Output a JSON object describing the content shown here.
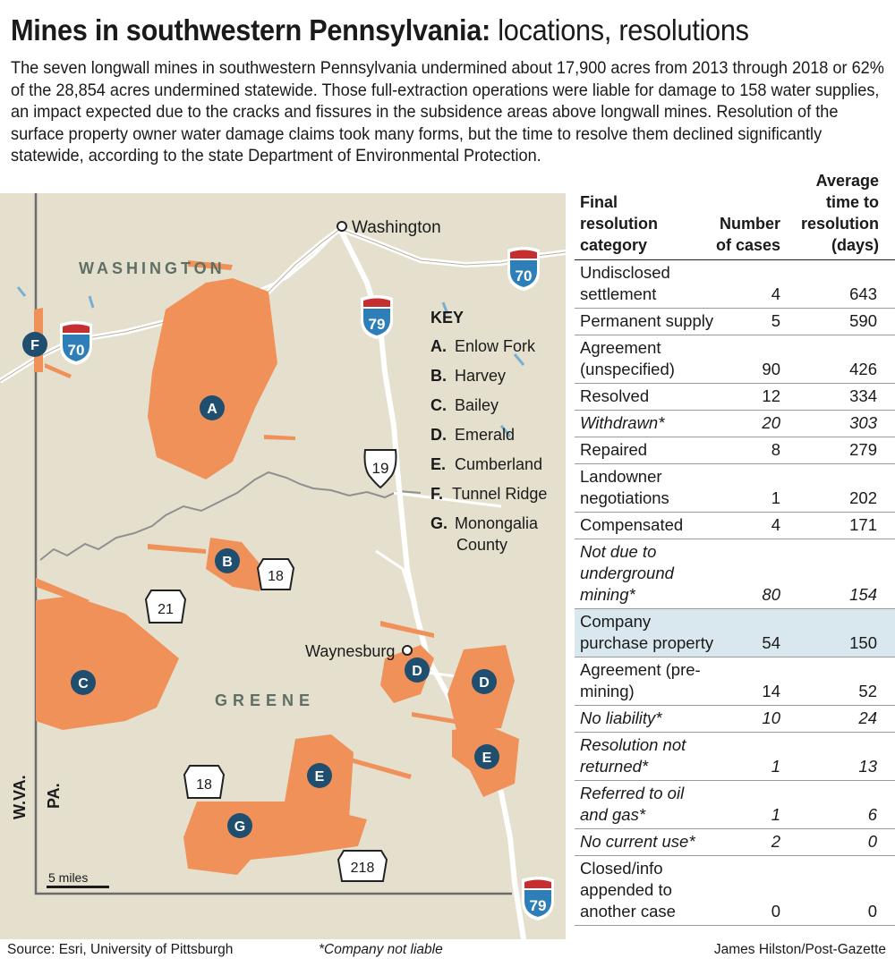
{
  "header": {
    "title_bold": "Mines in southwestern Pennsylvania:",
    "title_light": "locations, resolutions",
    "intro": "The seven longwall mines in southwestern Pennsylvania undermined about 17,900 acres from 2013 through 2018 or 62% of the 28,854 acres undermined statewide. Those full-extraction operations were liable for damage to 158 water supplies, an impact expected due to the cracks and fissures in the subsidence areas above longwall mines. Resolution of the surface property owner water damage claims took many forms, but the time to resolve them declined significantly statewide, according to the state Department of Environmental Protection."
  },
  "map": {
    "counties": [
      "WASHINGTON",
      "GREENE"
    ],
    "towns": [
      "Washington",
      "Waynesburg"
    ],
    "state_labels": [
      "W.VA.",
      "PA."
    ],
    "scale_label": "5 miles",
    "highways": {
      "i70_a": "70",
      "i70_b": "70",
      "i79_a": "79",
      "i79_b": "79",
      "us19": "19",
      "pa18_a": "18",
      "pa18_b": "18",
      "pa21": "21",
      "pa218": "218"
    },
    "markers": {
      "A": "A",
      "B": "B",
      "C": "C",
      "D1": "D",
      "D2": "D",
      "E1": "E",
      "E2": "E",
      "F": "F",
      "G": "G"
    },
    "key_title": "KEY",
    "key": [
      {
        "letter": "A.",
        "name": "Enlow Fork"
      },
      {
        "letter": "B.",
        "name": "Harvey"
      },
      {
        "letter": "C.",
        "name": "Bailey"
      },
      {
        "letter": "D.",
        "name": "Emerald"
      },
      {
        "letter": "E.",
        "name": "Cumberland"
      },
      {
        "letter": "F.",
        "name": "Tunnel Ridge"
      },
      {
        "letter": "G.",
        "name": "Monongalia",
        "name2": "County"
      }
    ],
    "colors": {
      "land": "#e5e0ce",
      "mine": "#f0915a",
      "marker": "#1f4e6e",
      "road": "#ffffff",
      "border": "#6b6b6b"
    }
  },
  "table": {
    "headers": {
      "category": "Final resolution category",
      "cases": "Number of cases",
      "time": "Average time to resolution (days)"
    },
    "rows": [
      {
        "category": "Undisclosed settlement",
        "cases": "4",
        "days": "643",
        "italic": false,
        "highlight": false
      },
      {
        "category": "Permanent supply",
        "cases": "5",
        "days": "590",
        "italic": false,
        "highlight": false
      },
      {
        "category": "Agreement (unspecified)",
        "cases": "90",
        "days": "426",
        "italic": false,
        "highlight": false
      },
      {
        "category": "Resolved",
        "cases": "12",
        "days": "334",
        "italic": false,
        "highlight": false
      },
      {
        "category": "Withdrawn*",
        "cases": "20",
        "days": "303",
        "italic": true,
        "highlight": false
      },
      {
        "category": "Repaired",
        "cases": "8",
        "days": "279",
        "italic": false,
        "highlight": false
      },
      {
        "category": "Landowner negotiations",
        "cases": "1",
        "days": "202",
        "italic": false,
        "highlight": false
      },
      {
        "category": "Compensated",
        "cases": "4",
        "days": "171",
        "italic": false,
        "highlight": false
      },
      {
        "category": "Not due to underground mining*",
        "cases": "80",
        "days": "154",
        "italic": true,
        "highlight": false
      },
      {
        "category": "Company purchase property",
        "cases": "54",
        "days": "150",
        "italic": false,
        "highlight": true
      },
      {
        "category": "Agreement (pre-mining)",
        "cases": "14",
        "days": "52",
        "italic": false,
        "highlight": false
      },
      {
        "category": "No liability*",
        "cases": "10",
        "days": "24",
        "italic": true,
        "highlight": false
      },
      {
        "category": "Resolution not returned*",
        "cases": "1",
        "days": "13",
        "italic": true,
        "highlight": false
      },
      {
        "category": "Referred to oil and gas*",
        "cases": "1",
        "days": "6",
        "italic": true,
        "highlight": false
      },
      {
        "category": "No current use*",
        "cases": "2",
        "days": "0",
        "italic": true,
        "highlight": false
      },
      {
        "category": "Closed/info appended to another case",
        "cases": "0",
        "days": "0",
        "italic": false,
        "highlight": false
      }
    ]
  },
  "footer": {
    "source": "Source: Esri, University of Pittsburgh",
    "note": "*Company not liable",
    "credit": "James Hilston/Post-Gazette"
  }
}
